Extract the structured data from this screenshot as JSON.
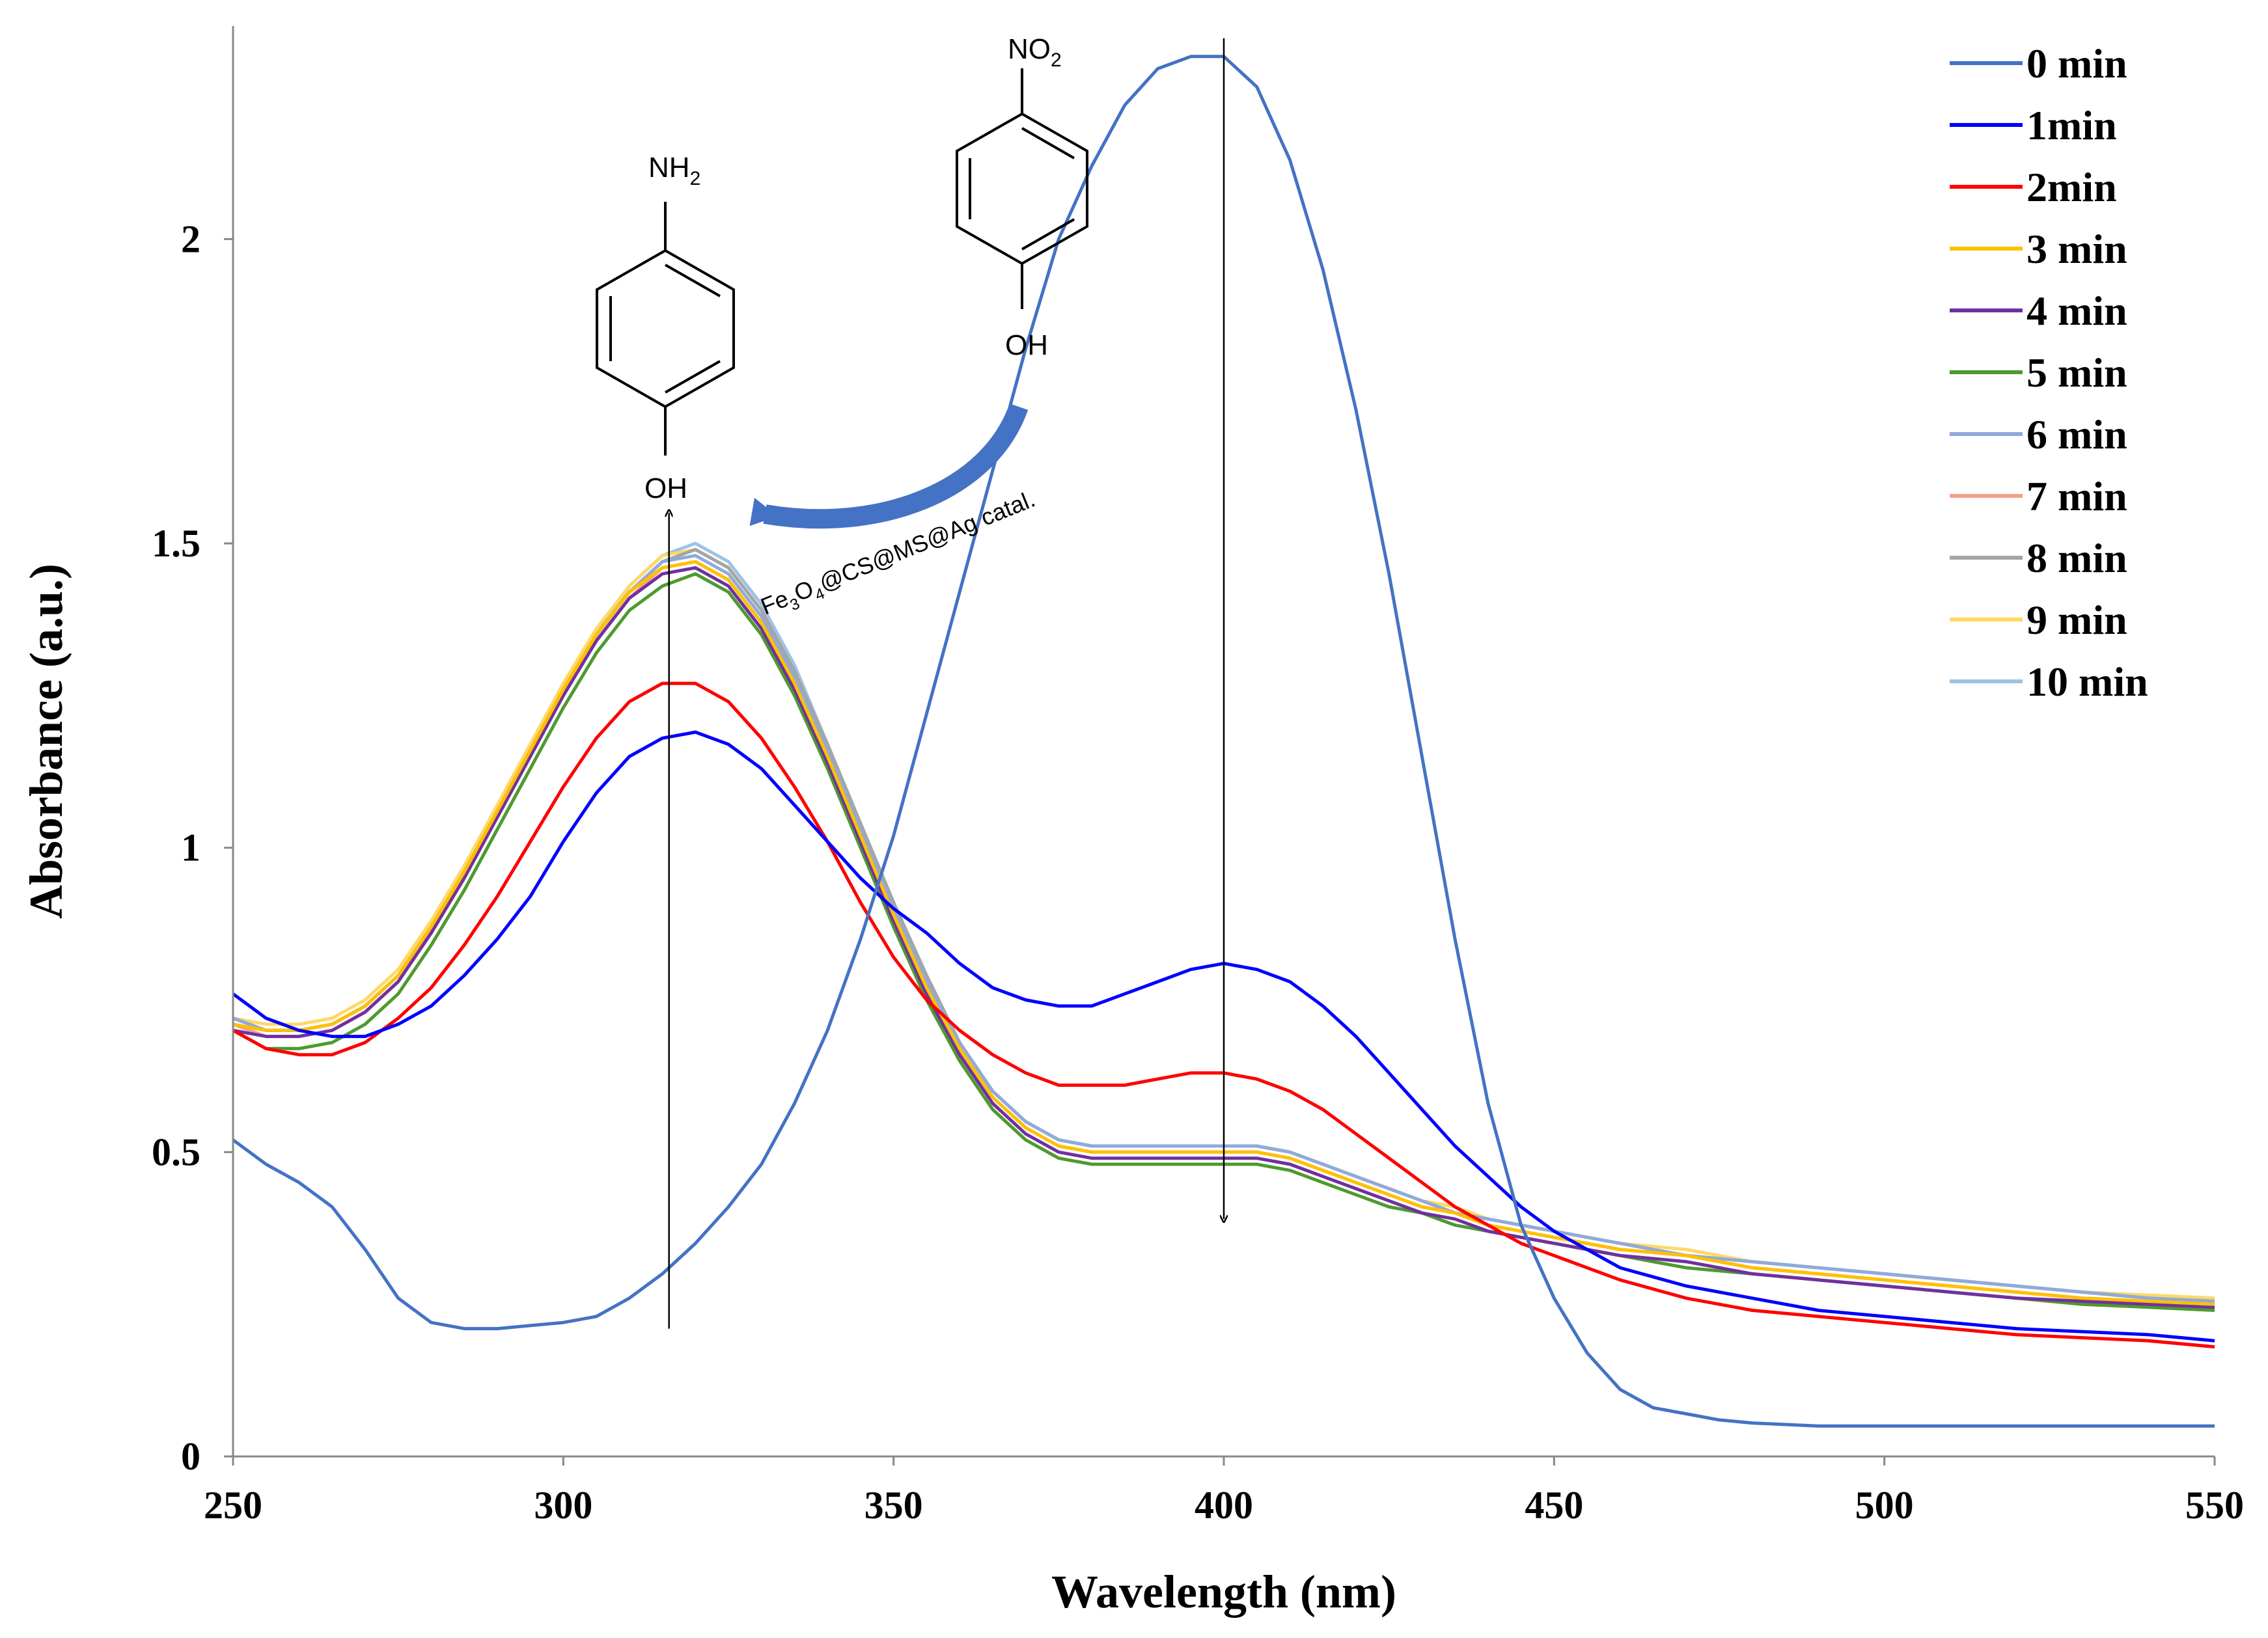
{
  "chart_data": {
    "type": "line",
    "title": "",
    "xlabel": "Wavelength (nm)",
    "ylabel": "Absorbance (a.u.)",
    "xlim": [
      250,
      550
    ],
    "ylim": [
      0,
      2.35
    ],
    "xticks": [
      250,
      300,
      350,
      400,
      450,
      500,
      550
    ],
    "yticks": [
      0,
      0.5,
      1,
      1.5,
      2
    ],
    "xtick_labels": [
      "250",
      "300",
      "350",
      "400",
      "450",
      "500",
      "550"
    ],
    "ytick_labels": [
      "0",
      "0.5",
      "1",
      "1.5",
      "2"
    ],
    "legend_position": "top-right",
    "series": [
      {
        "name": "0 min",
        "color": "#4472C4",
        "x": [
          250,
          255,
          260,
          265,
          270,
          275,
          280,
          285,
          290,
          295,
          300,
          305,
          310,
          315,
          320,
          325,
          330,
          335,
          340,
          345,
          350,
          355,
          360,
          365,
          370,
          375,
          380,
          385,
          390,
          395,
          400,
          405,
          410,
          415,
          420,
          425,
          430,
          435,
          440,
          445,
          450,
          455,
          460,
          465,
          470,
          475,
          480,
          490,
          500,
          510,
          520,
          530,
          540,
          550
        ],
        "y": [
          0.52,
          0.48,
          0.45,
          0.41,
          0.34,
          0.26,
          0.22,
          0.21,
          0.21,
          0.215,
          0.22,
          0.23,
          0.26,
          0.3,
          0.35,
          0.41,
          0.48,
          0.58,
          0.7,
          0.85,
          1.02,
          1.22,
          1.42,
          1.62,
          1.82,
          2.0,
          2.12,
          2.22,
          2.28,
          2.3,
          2.3,
          2.25,
          2.13,
          1.95,
          1.72,
          1.45,
          1.15,
          0.85,
          0.58,
          0.38,
          0.26,
          0.17,
          0.11,
          0.08,
          0.07,
          0.06,
          0.055,
          0.05,
          0.05,
          0.05,
          0.05,
          0.05,
          0.05,
          0.05
        ]
      },
      {
        "name": "1min",
        "color": "#0000FF",
        "x": [
          250,
          255,
          260,
          265,
          270,
          275,
          280,
          285,
          290,
          295,
          300,
          305,
          310,
          315,
          320,
          325,
          330,
          335,
          340,
          345,
          350,
          355,
          360,
          365,
          370,
          375,
          380,
          385,
          390,
          395,
          400,
          405,
          410,
          415,
          420,
          425,
          430,
          435,
          440,
          445,
          450,
          460,
          470,
          480,
          490,
          500,
          510,
          520,
          530,
          540,
          550
        ],
        "y": [
          0.76,
          0.72,
          0.7,
          0.69,
          0.69,
          0.71,
          0.74,
          0.79,
          0.85,
          0.92,
          1.01,
          1.09,
          1.15,
          1.18,
          1.19,
          1.17,
          1.13,
          1.07,
          1.01,
          0.95,
          0.9,
          0.86,
          0.81,
          0.77,
          0.75,
          0.74,
          0.74,
          0.76,
          0.78,
          0.8,
          0.81,
          0.8,
          0.78,
          0.74,
          0.69,
          0.63,
          0.57,
          0.51,
          0.46,
          0.41,
          0.37,
          0.31,
          0.28,
          0.26,
          0.24,
          0.23,
          0.22,
          0.21,
          0.205,
          0.2,
          0.19
        ]
      },
      {
        "name": "2min",
        "color": "#FF0000",
        "x": [
          250,
          255,
          260,
          265,
          270,
          275,
          280,
          285,
          290,
          295,
          300,
          305,
          310,
          315,
          320,
          325,
          330,
          335,
          340,
          345,
          350,
          355,
          360,
          365,
          370,
          375,
          380,
          385,
          390,
          395,
          400,
          405,
          410,
          415,
          420,
          425,
          430,
          435,
          440,
          445,
          450,
          460,
          470,
          480,
          490,
          500,
          510,
          520,
          530,
          540,
          550
        ],
        "y": [
          0.7,
          0.67,
          0.66,
          0.66,
          0.68,
          0.72,
          0.77,
          0.84,
          0.92,
          1.01,
          1.1,
          1.18,
          1.24,
          1.27,
          1.27,
          1.24,
          1.18,
          1.1,
          1.01,
          0.91,
          0.82,
          0.75,
          0.7,
          0.66,
          0.63,
          0.61,
          0.61,
          0.61,
          0.62,
          0.63,
          0.63,
          0.62,
          0.6,
          0.57,
          0.53,
          0.49,
          0.45,
          0.41,
          0.38,
          0.35,
          0.33,
          0.29,
          0.26,
          0.24,
          0.23,
          0.22,
          0.21,
          0.2,
          0.195,
          0.19,
          0.18
        ]
      },
      {
        "name": "3 min",
        "color": "#FFC000",
        "x": [
          250,
          255,
          260,
          265,
          270,
          275,
          280,
          285,
          290,
          295,
          300,
          305,
          310,
          315,
          320,
          325,
          330,
          335,
          340,
          345,
          350,
          355,
          360,
          365,
          370,
          375,
          380,
          385,
          390,
          395,
          400,
          405,
          410,
          415,
          420,
          425,
          430,
          435,
          440,
          445,
          450,
          460,
          470,
          480,
          490,
          500,
          510,
          520,
          530,
          540,
          550
        ],
        "y": [
          0.71,
          0.7,
          0.7,
          0.71,
          0.74,
          0.79,
          0.87,
          0.96,
          1.06,
          1.16,
          1.26,
          1.35,
          1.42,
          1.46,
          1.47,
          1.44,
          1.37,
          1.27,
          1.15,
          1.02,
          0.89,
          0.77,
          0.67,
          0.59,
          0.54,
          0.51,
          0.5,
          0.5,
          0.5,
          0.5,
          0.5,
          0.5,
          0.49,
          0.47,
          0.45,
          0.43,
          0.41,
          0.4,
          0.38,
          0.37,
          0.36,
          0.34,
          0.33,
          0.31,
          0.3,
          0.29,
          0.28,
          0.27,
          0.26,
          0.255,
          0.25
        ]
      },
      {
        "name": "4 min",
        "color": "#7030A0",
        "x": [
          250,
          255,
          260,
          265,
          270,
          275,
          280,
          285,
          290,
          295,
          300,
          305,
          310,
          315,
          320,
          325,
          330,
          335,
          340,
          345,
          350,
          355,
          360,
          365,
          370,
          375,
          380,
          385,
          390,
          395,
          400,
          405,
          410,
          415,
          420,
          425,
          430,
          435,
          440,
          445,
          450,
          460,
          470,
          480,
          490,
          500,
          510,
          520,
          530,
          540,
          550
        ],
        "y": [
          0.7,
          0.69,
          0.69,
          0.7,
          0.73,
          0.78,
          0.86,
          0.95,
          1.05,
          1.15,
          1.25,
          1.34,
          1.41,
          1.45,
          1.46,
          1.43,
          1.36,
          1.26,
          1.14,
          1.01,
          0.88,
          0.76,
          0.66,
          0.58,
          0.53,
          0.5,
          0.49,
          0.49,
          0.49,
          0.49,
          0.49,
          0.49,
          0.48,
          0.46,
          0.44,
          0.42,
          0.4,
          0.39,
          0.37,
          0.36,
          0.35,
          0.33,
          0.32,
          0.3,
          0.29,
          0.28,
          0.27,
          0.26,
          0.255,
          0.25,
          0.245
        ]
      },
      {
        "name": "5 min",
        "color": "#4E9A2E",
        "x": [
          250,
          255,
          260,
          265,
          270,
          275,
          280,
          285,
          290,
          295,
          300,
          305,
          310,
          315,
          320,
          325,
          330,
          335,
          340,
          345,
          350,
          355,
          360,
          365,
          370,
          375,
          380,
          385,
          390,
          395,
          400,
          405,
          410,
          415,
          420,
          425,
          430,
          435,
          440,
          445,
          450,
          460,
          470,
          480,
          490,
          500,
          510,
          520,
          530,
          540,
          550
        ],
        "y": [
          0.7,
          0.67,
          0.67,
          0.68,
          0.71,
          0.76,
          0.84,
          0.93,
          1.03,
          1.13,
          1.23,
          1.32,
          1.39,
          1.43,
          1.45,
          1.42,
          1.35,
          1.25,
          1.13,
          1.0,
          0.87,
          0.75,
          0.65,
          0.57,
          0.52,
          0.49,
          0.48,
          0.48,
          0.48,
          0.48,
          0.48,
          0.48,
          0.47,
          0.45,
          0.43,
          0.41,
          0.4,
          0.38,
          0.37,
          0.36,
          0.35,
          0.33,
          0.31,
          0.3,
          0.29,
          0.28,
          0.27,
          0.26,
          0.25,
          0.245,
          0.24
        ]
      },
      {
        "name": "6 min",
        "color": "#8FAADC",
        "x": [
          250,
          255,
          260,
          265,
          270,
          275,
          280,
          285,
          290,
          295,
          300,
          305,
          310,
          315,
          320,
          325,
          330,
          335,
          340,
          345,
          350,
          355,
          360,
          365,
          370,
          375,
          380,
          385,
          390,
          395,
          400,
          405,
          410,
          415,
          420,
          425,
          430,
          435,
          440,
          445,
          450,
          460,
          470,
          480,
          490,
          500,
          510,
          520,
          530,
          540,
          550
        ],
        "y": [
          0.72,
          0.7,
          0.7,
          0.71,
          0.74,
          0.79,
          0.87,
          0.96,
          1.06,
          1.16,
          1.26,
          1.35,
          1.42,
          1.47,
          1.48,
          1.45,
          1.38,
          1.28,
          1.16,
          1.03,
          0.9,
          0.78,
          0.68,
          0.6,
          0.55,
          0.52,
          0.51,
          0.51,
          0.51,
          0.51,
          0.51,
          0.51,
          0.5,
          0.48,
          0.46,
          0.44,
          0.42,
          0.4,
          0.39,
          0.38,
          0.37,
          0.35,
          0.33,
          0.32,
          0.31,
          0.3,
          0.29,
          0.28,
          0.27,
          0.26,
          0.255
        ]
      },
      {
        "name": "7 min",
        "color": "#F4A08A",
        "x": [
          250,
          255,
          260,
          265,
          270,
          275,
          280,
          285,
          290,
          295,
          300,
          305,
          310,
          315,
          320,
          325,
          330,
          335,
          340,
          345,
          350,
          355,
          360,
          365,
          370,
          375,
          380,
          385,
          390,
          395,
          400,
          405,
          410,
          415,
          420,
          425,
          430,
          435,
          440,
          445,
          450,
          460,
          470,
          480,
          490,
          500,
          510,
          520,
          530,
          540,
          550
        ],
        "y": [
          0.71,
          0.69,
          0.69,
          0.7,
          0.73,
          0.78,
          0.86,
          0.95,
          1.05,
          1.15,
          1.25,
          1.34,
          1.41,
          1.46,
          1.47,
          1.44,
          1.37,
          1.27,
          1.15,
          1.02,
          0.89,
          0.77,
          0.67,
          0.59,
          0.54,
          0.51,
          0.5,
          0.5,
          0.5,
          0.5,
          0.5,
          0.5,
          0.49,
          0.47,
          0.45,
          0.43,
          0.41,
          0.4,
          0.38,
          0.37,
          0.36,
          0.34,
          0.33,
          0.31,
          0.3,
          0.29,
          0.28,
          0.27,
          0.26,
          0.255,
          0.25
        ]
      },
      {
        "name": "8 min",
        "color": "#A5A5A5",
        "x": [
          250,
          255,
          260,
          265,
          270,
          275,
          280,
          285,
          290,
          295,
          300,
          305,
          310,
          315,
          320,
          325,
          330,
          335,
          340,
          345,
          350,
          355,
          360,
          365,
          370,
          375,
          380,
          385,
          390,
          395,
          400,
          405,
          410,
          415,
          420,
          425,
          430,
          435,
          440,
          445,
          450,
          460,
          470,
          480,
          490,
          500,
          510,
          520,
          530,
          540,
          550
        ],
        "y": [
          0.72,
          0.7,
          0.7,
          0.71,
          0.74,
          0.79,
          0.87,
          0.96,
          1.06,
          1.16,
          1.26,
          1.35,
          1.42,
          1.47,
          1.49,
          1.46,
          1.39,
          1.29,
          1.17,
          1.04,
          0.91,
          0.79,
          0.68,
          0.6,
          0.55,
          0.52,
          0.51,
          0.51,
          0.51,
          0.51,
          0.51,
          0.51,
          0.5,
          0.48,
          0.46,
          0.44,
          0.42,
          0.4,
          0.39,
          0.38,
          0.37,
          0.35,
          0.33,
          0.32,
          0.31,
          0.3,
          0.29,
          0.28,
          0.27,
          0.26,
          0.255
        ]
      },
      {
        "name": "9 min",
        "color": "#FFD966",
        "x": [
          250,
          255,
          260,
          265,
          270,
          275,
          280,
          285,
          290,
          295,
          300,
          305,
          310,
          315,
          320,
          325,
          330,
          335,
          340,
          345,
          350,
          355,
          360,
          365,
          370,
          375,
          380,
          385,
          390,
          395,
          400,
          405,
          410,
          415,
          420,
          425,
          430,
          435,
          440,
          445,
          450,
          460,
          470,
          480,
          490,
          500,
          510,
          520,
          530,
          540,
          550
        ],
        "y": [
          0.72,
          0.71,
          0.71,
          0.72,
          0.75,
          0.8,
          0.88,
          0.97,
          1.07,
          1.17,
          1.27,
          1.36,
          1.43,
          1.48,
          1.49,
          1.46,
          1.39,
          1.29,
          1.17,
          1.04,
          0.91,
          0.79,
          0.68,
          0.6,
          0.55,
          0.52,
          0.51,
          0.51,
          0.51,
          0.51,
          0.51,
          0.51,
          0.5,
          0.48,
          0.46,
          0.44,
          0.42,
          0.41,
          0.39,
          0.38,
          0.37,
          0.35,
          0.34,
          0.32,
          0.31,
          0.3,
          0.29,
          0.28,
          0.27,
          0.265,
          0.26
        ]
      },
      {
        "name": "10 min",
        "color": "#9DC3E6",
        "x": [
          250,
          255,
          260,
          265,
          270,
          275,
          280,
          285,
          290,
          295,
          300,
          305,
          310,
          315,
          320,
          325,
          330,
          335,
          340,
          345,
          350,
          355,
          360,
          365,
          370,
          375,
          380,
          385,
          390,
          395,
          400,
          405,
          410,
          415,
          420,
          425,
          430,
          435,
          440,
          445,
          450,
          460,
          470,
          480,
          490,
          500,
          510,
          520,
          530,
          540,
          550
        ],
        "y": [
          0.71,
          0.7,
          0.7,
          0.71,
          0.74,
          0.79,
          0.87,
          0.96,
          1.06,
          1.16,
          1.26,
          1.35,
          1.43,
          1.48,
          1.5,
          1.47,
          1.4,
          1.3,
          1.17,
          1.04,
          0.91,
          0.79,
          0.68,
          0.6,
          0.55,
          0.52,
          0.51,
          0.51,
          0.51,
          0.51,
          0.51,
          0.51,
          0.5,
          0.48,
          0.46,
          0.44,
          0.42,
          0.4,
          0.39,
          0.38,
          0.37,
          0.35,
          0.33,
          0.32,
          0.31,
          0.3,
          0.29,
          0.28,
          0.27,
          0.26,
          0.255
        ]
      }
    ],
    "annotations": {
      "nh2_label": "NH",
      "nh2_sub": "2",
      "oh_label_left": "OH",
      "no2_label": "NO",
      "no2_sub": "2",
      "oh_label_right": "OH",
      "catalyst_parts": [
        "Fe",
        "3",
        "O",
        "4",
        "@CS@MS@Ag catal."
      ],
      "arrow_up_x": 316,
      "arrow_down_x": 400
    }
  }
}
